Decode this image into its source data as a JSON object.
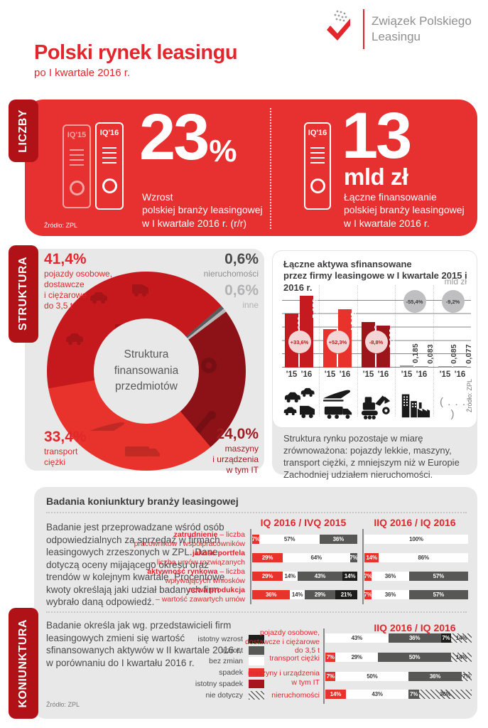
{
  "header": {
    "title": "Polski rynek leasingu",
    "subtitle": "po I kwartale 2016 r.",
    "logo": "Związek Polskiego\nLeasingu"
  },
  "liczby": {
    "tab": "LICZBY",
    "source": "Źródło: ZPL",
    "stat1": {
      "binder1": "IQ'15",
      "binder2": "IQ'16",
      "value": "23",
      "unit": "%",
      "desc": "Wzrost\npolskiej branży leasingowej\nw I kwartale 2016 r. (r/r)"
    },
    "stat2": {
      "binder": "IQ'16",
      "value": "13",
      "unit": "mld zł",
      "desc": "Łączne finansowanie\npolskiej branży leasingowej\nw I kwartale 2016 r."
    }
  },
  "struktura": {
    "tab": "STRUKTURA",
    "donut_center": "Struktura\nfinansowania\nprzedmiotów",
    "labels": {
      "pojazdy": {
        "value": "41,4%",
        "label": "pojazdy osobowe,\ndostawcze\ni ciężarowe\ndo 3,5 t"
      },
      "nieruchomosci": {
        "value": "0,6%",
        "label": "nieruchomości"
      },
      "inne": {
        "value": "0,6%",
        "label": "inne"
      },
      "maszyny": {
        "value": "24,0%",
        "label": "maszyny\ni urządzenia\nw tym IT"
      },
      "transport": {
        "value": "33,4%",
        "label": "transport\nciężki"
      }
    },
    "chart_source": "Źródło: ZPL",
    "note": "Struktura rynku pozostaje w miarę zrównoważona: pojazdy lekkie, maszyny, transport ciężki, z mniejszym niż w Europie Zachodniej udziałem nieruchomości."
  },
  "koniunktura": {
    "tab": "KONIUNKTURA",
    "header": "Badania koniunktury branży leasingowej",
    "para1": "Badanie jest przeprowadzane wśród osób odpowiedzialnych za sprzedaż w firmach leasingowych zrzeszonych w ZPL. Dane dotyczą oceny mijającego okresu oraz trendów w kolejnym kwartale. Procentowe kwoty określają jaki udział  badanych firm wybrało daną odpowiedź.",
    "para2": "Badanie określa jak wg. przedstawicieli firm leasingowych zmieni się wartość sfinansowanych aktywów w II kwartale 2016 r. w porównaniu do I kwartału 2016 r.",
    "row_labels": [
      {
        "bold": "zatrudnienie",
        "rest": " – liczba\npracowników i współpracowników"
      },
      {
        "bold": "jakość portfela",
        "rest": "\n– liczba umów rozwiązanych"
      },
      {
        "bold": "aktywność rynkowa",
        "rest": " – liczba\nwpływających wniosków"
      },
      {
        "bold": "nowa produkcja",
        "rest": "\n– wartość zawartych umów"
      }
    ],
    "legend": [
      {
        "label": "istotny wzrost",
        "key": "istotny_wzrost",
        "color": "#1d1d1b"
      },
      {
        "label": "wzrost",
        "key": "wzrost",
        "color": "#575756"
      },
      {
        "label": "bez zmian",
        "key": "bez_zmian",
        "color": "#ffffff"
      },
      {
        "label": "spadek",
        "key": "spadek",
        "color": "#e8332c"
      },
      {
        "label": "istotny spadek",
        "key": "istotny_spadek",
        "color": "#a6151b"
      },
      {
        "label": "nie dotyczy",
        "key": "nie_dotyczy",
        "color": "hatch"
      }
    ],
    "source": "Źródło: ZPL"
  },
  "chart_data": [
    {
      "id": "donut",
      "type": "pie",
      "title": "Struktura finansowania przedmiotów",
      "start_angle_deg": 49,
      "slices": [
        {
          "label": "nieruchomości",
          "value": 0.6,
          "color": "#5b5b5d"
        },
        {
          "label": "inne",
          "value": 0.6,
          "color": "#b7b7b7"
        },
        {
          "label": "maszyny i urządzenia w tym IT",
          "value": 24.0,
          "color": "#8d1217"
        },
        {
          "label": "transport ciężki",
          "value": 33.4,
          "color": "#e8332c"
        },
        {
          "label": "pojazdy osobowe, dostawcze i ciężarowe do 3,5 t",
          "value": 41.4,
          "color": "#c5191d"
        }
      ]
    },
    {
      "id": "assets",
      "type": "bar",
      "title": "Łączne aktywa sfinansowane\nprzez firmy leasingowe w I kwartale 2015 i 2016 r.",
      "unit": "mld zł",
      "ylim": [
        0,
        6
      ],
      "x_labels": [
        "'15",
        "'16"
      ],
      "groups": [
        {
          "icon": "vehicles",
          "values": [
            "4,026",
            "5,378"
          ],
          "nums": [
            4.026,
            5.378
          ],
          "change": "+33,6%",
          "color": "#c51b20",
          "badge": "pink"
        },
        {
          "icon": "plane-truck",
          "values": [
            "2,851",
            "4,342"
          ],
          "nums": [
            2.851,
            4.342
          ],
          "change": "+52,3%",
          "color": "#e8332c",
          "badge": "pink"
        },
        {
          "icon": "machinery",
          "values": [
            "3,423",
            "3,123"
          ],
          "nums": [
            3.423,
            3.123
          ],
          "change": "-8,8%",
          "color": "#9c151a",
          "badge": "pink"
        },
        {
          "icon": "buildings",
          "values": [
            "0,185",
            "0,083"
          ],
          "nums": [
            0.185,
            0.083
          ],
          "change": "-55,4%",
          "color": "#9a9a9c",
          "badge": "gray"
        },
        {
          "icon": "dots",
          "values": [
            "0,085",
            "0,077"
          ],
          "nums": [
            0.085,
            0.077
          ],
          "change": "-9,2%",
          "color": "#9a9a9c",
          "badge": "gray"
        }
      ]
    },
    {
      "id": "survey1",
      "type": "stacked-bar-h",
      "title": "IQ 2016 / IVQ 2015",
      "rows": [
        [
          {
            "pct": 7,
            "key": "spadek"
          },
          {
            "pct": 57,
            "key": "bez_zmian"
          },
          {
            "pct": 36,
            "key": "wzrost"
          }
        ],
        [
          {
            "pct": 29,
            "key": "spadek"
          },
          {
            "pct": 64,
            "key": "bez_zmian"
          },
          {
            "pct": 7,
            "key": "wzrost"
          }
        ],
        [
          {
            "pct": 29,
            "key": "spadek"
          },
          {
            "pct": 14,
            "key": "bez_zmian"
          },
          {
            "pct": 43,
            "key": "wzrost"
          },
          {
            "pct": 14,
            "key": "istotny_wzrost"
          }
        ],
        [
          {
            "pct": 36,
            "key": "spadek"
          },
          {
            "pct": 14,
            "key": "bez_zmian"
          },
          {
            "pct": 29,
            "key": "wzrost"
          },
          {
            "pct": 21,
            "key": "istotny_wzrost"
          }
        ]
      ]
    },
    {
      "id": "survey2",
      "type": "stacked-bar-h",
      "title": "IIQ 2016 / IQ 2016",
      "rows": [
        [
          {
            "pct": 100,
            "key": "bez_zmian"
          }
        ],
        [
          {
            "pct": 14,
            "key": "spadek"
          },
          {
            "pct": 86,
            "key": "bez_zmian"
          }
        ],
        [
          {
            "pct": 7,
            "key": "spadek"
          },
          {
            "pct": 36,
            "key": "bez_zmian"
          },
          {
            "pct": 57,
            "key": "wzrost"
          }
        ],
        [
          {
            "pct": 7,
            "key": "spadek"
          },
          {
            "pct": 36,
            "key": "bez_zmian"
          },
          {
            "pct": 57,
            "key": "wzrost"
          }
        ]
      ]
    },
    {
      "id": "survey3",
      "type": "stacked-bar-h",
      "title": "IIQ 2016 / IQ 2016",
      "row_labels": [
        "pojazdy osobowe,\ndostawcze i ciężarowe\ndo 3,5 t",
        "transport ciężki",
        "maszyny i urządzenia\nw tym IT",
        "nieruchomości"
      ],
      "rows": [
        [
          {
            "pct": 43,
            "key": "bez_zmian"
          },
          {
            "pct": 36,
            "key": "wzrost"
          },
          {
            "pct": 7,
            "key": "istotny_wzrost"
          },
          {
            "pct": 14,
            "key": "nie_dotyczy"
          }
        ],
        [
          {
            "pct": 7,
            "key": "spadek"
          },
          {
            "pct": 29,
            "key": "bez_zmian"
          },
          {
            "pct": 50,
            "key": "wzrost"
          },
          {
            "pct": 14,
            "key": "nie_dotyczy"
          }
        ],
        [
          {
            "pct": 7,
            "key": "spadek"
          },
          {
            "pct": 50,
            "key": "bez_zmian"
          },
          {
            "pct": 36,
            "key": "wzrost"
          },
          {
            "pct": 7,
            "key": "nie_dotyczy"
          }
        ],
        [
          {
            "pct": 14,
            "key": "spadek"
          },
          {
            "pct": 43,
            "key": "bez_zmian"
          },
          {
            "pct": 7,
            "key": "wzrost"
          },
          {
            "pct": 36,
            "key": "nie_dotyczy"
          }
        ]
      ]
    }
  ]
}
